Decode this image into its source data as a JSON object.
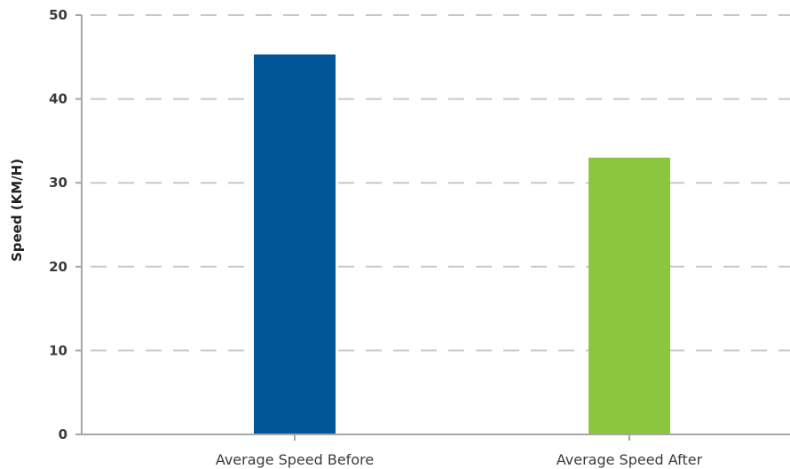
{
  "chart_data": {
    "type": "bar",
    "title": "",
    "xlabel": "",
    "ylabel": "Speed (KM/H)",
    "categories": [
      "Average Speed Before",
      "Average Speed After"
    ],
    "values": [
      45.3,
      33.0
    ],
    "bar_colors": [
      "#005596",
      "#8cc63f"
    ],
    "ylim": [
      0,
      50
    ],
    "yticks": [
      0,
      10,
      20,
      30,
      40,
      50
    ],
    "ytick_labels": [
      "0",
      "10",
      "20",
      "30",
      "40",
      "50"
    ],
    "grid": true,
    "grid_style": "dashed",
    "grid_color": "#c8c8c8",
    "axis_color": "#a6a6a6",
    "legend": "none"
  }
}
